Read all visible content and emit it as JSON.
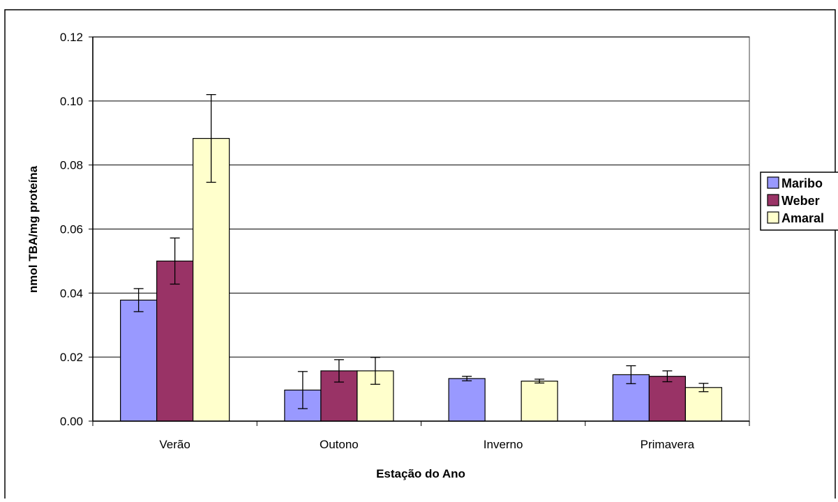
{
  "chart_data": {
    "type": "bar",
    "title": "",
    "xlabel": "Estação do Ano",
    "ylabel": "nmol TBA/mg proteína",
    "categories": [
      "Verão",
      "Outono",
      "Inverno",
      "Primavera"
    ],
    "ylim": [
      0,
      0.12
    ],
    "yticks": [
      "0.00",
      "0.02",
      "0.04",
      "0.06",
      "0.08",
      "0.10",
      "0.12"
    ],
    "grid": true,
    "legend_position": "right",
    "series": [
      {
        "name": "Maribo",
        "color": "#9999ff",
        "values": [
          0.0378,
          0.0097,
          0.0133,
          0.0145
        ],
        "errors": [
          0.0036,
          0.0058,
          0.0007,
          0.0028
        ]
      },
      {
        "name": "Weber",
        "color": "#993366",
        "values": [
          0.05,
          0.0157,
          null,
          0.014
        ],
        "errors": [
          0.0072,
          0.0035,
          null,
          0.0017
        ]
      },
      {
        "name": "Amaral",
        "color": "#ffffcc",
        "values": [
          0.0883,
          0.0157,
          0.0125,
          0.0105
        ],
        "errors": [
          0.0137,
          0.0042,
          0.0006,
          0.0013
        ]
      }
    ]
  }
}
